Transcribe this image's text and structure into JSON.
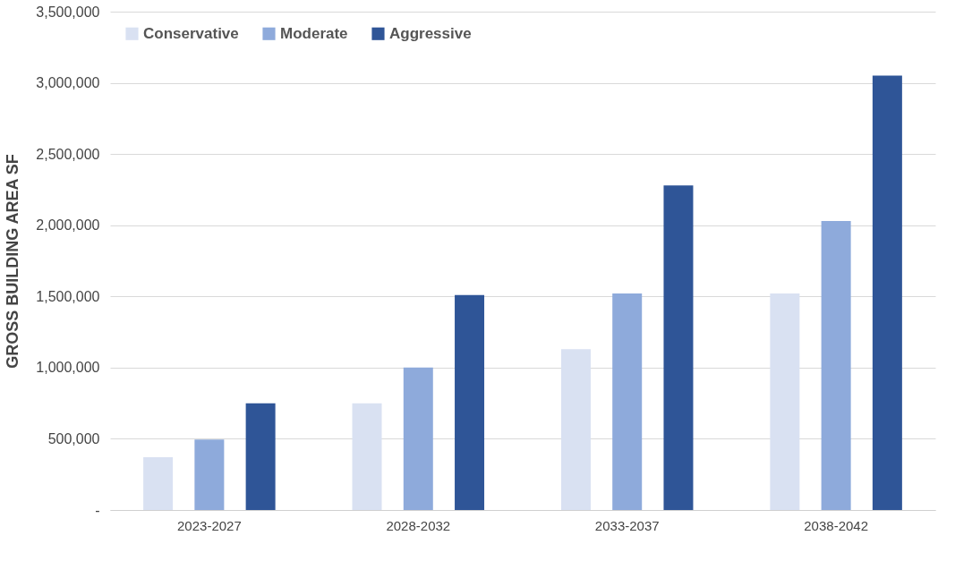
{
  "chart_data": {
    "type": "bar",
    "ylabel": "GROSS BUILDING AREA SF",
    "categories": [
      "2023-2027",
      "2028-2032",
      "2033-2037",
      "2038-2042"
    ],
    "series": [
      {
        "name": "Conservative",
        "color": "#d9e1f2",
        "values": [
          370000,
          750000,
          1130000,
          1520000
        ]
      },
      {
        "name": "Moderate",
        "color": "#8eaadb",
        "values": [
          495000,
          1000000,
          1520000,
          2030000
        ]
      },
      {
        "name": "Aggressive",
        "color": "#2f5597",
        "values": [
          750000,
          1510000,
          2280000,
          3050000
        ]
      }
    ],
    "ylim": [
      0,
      3500000
    ],
    "yticks": [
      {
        "value": 0,
        "label": "-"
      },
      {
        "value": 500000,
        "label": "500,000"
      },
      {
        "value": 1000000,
        "label": "1,000,000"
      },
      {
        "value": 1500000,
        "label": "1,500,000"
      },
      {
        "value": 2000000,
        "label": "2,000,000"
      },
      {
        "value": 2500000,
        "label": "2,500,000"
      },
      {
        "value": 3000000,
        "label": "3,000,000"
      },
      {
        "value": 3500000,
        "label": "3,500,000"
      }
    ],
    "grid": "y",
    "legend": "top left"
  }
}
